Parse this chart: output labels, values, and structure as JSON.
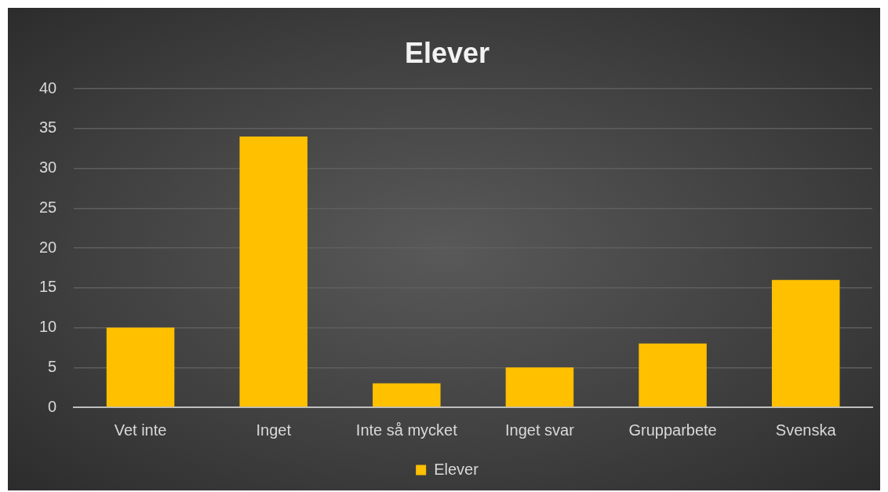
{
  "chart_data": {
    "type": "bar",
    "title": "Elever",
    "categories": [
      "Vet inte",
      "Inget",
      "Inte så mycket",
      "Inget svar",
      "Grupparbete",
      "Svenska"
    ],
    "series": [
      {
        "name": "Elever",
        "color": "#ffc000",
        "values": [
          10,
          34,
          3,
          5,
          8,
          16
        ]
      }
    ],
    "ylim": [
      0,
      40
    ],
    "yticks": [
      0,
      5,
      10,
      15,
      20,
      25,
      30,
      35,
      40
    ],
    "grid": "y",
    "legend": "bottom"
  }
}
